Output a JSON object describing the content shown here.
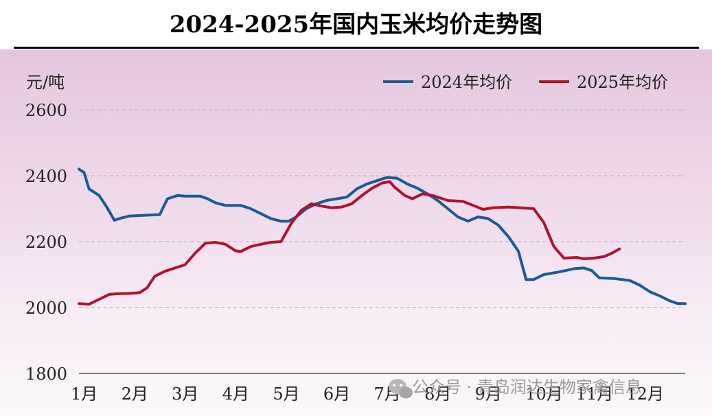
{
  "title": "2024-2025年国内玉米均价走势图",
  "watermark": "公众号 · 青岛润达生物家禽信息",
  "colors": {
    "series_2024": "#1c5a92",
    "series_2025": "#b3122a",
    "grid": "#c9b9c6"
  },
  "chart_data": {
    "type": "line",
    "title": "2024-2025年国内玉米均价走势图",
    "ylabel": "元/吨",
    "xlabel": "",
    "ylim": [
      1800,
      2600
    ],
    "yticks": [
      1800,
      2000,
      2200,
      2400,
      2600
    ],
    "x_categories": [
      "1月",
      "2月",
      "3月",
      "4月",
      "5月",
      "6月",
      "7月",
      "8月",
      "9月",
      "10月",
      "11月",
      "12月"
    ],
    "x_unit": "month (1 = 1月 start, 13 = 12月 end)",
    "grid": "horizontal dashed",
    "legend_position": "top-right",
    "series": [
      {
        "name": "2024年均价",
        "color": "#1c5a92",
        "points": [
          [
            1.0,
            2420
          ],
          [
            1.1,
            2410
          ],
          [
            1.2,
            2360
          ],
          [
            1.4,
            2340
          ],
          [
            1.55,
            2305
          ],
          [
            1.7,
            2265
          ],
          [
            1.85,
            2272
          ],
          [
            2.0,
            2278
          ],
          [
            2.3,
            2280
          ],
          [
            2.6,
            2282
          ],
          [
            2.75,
            2330
          ],
          [
            2.95,
            2340
          ],
          [
            3.1,
            2338
          ],
          [
            3.4,
            2338
          ],
          [
            3.55,
            2330
          ],
          [
            3.7,
            2318
          ],
          [
            3.9,
            2310
          ],
          [
            4.2,
            2310
          ],
          [
            4.4,
            2300
          ],
          [
            4.6,
            2285
          ],
          [
            4.8,
            2270
          ],
          [
            5.0,
            2262
          ],
          [
            5.15,
            2262
          ],
          [
            5.3,
            2275
          ],
          [
            5.5,
            2300
          ],
          [
            5.7,
            2315
          ],
          [
            5.9,
            2325
          ],
          [
            6.1,
            2330
          ],
          [
            6.3,
            2335
          ],
          [
            6.5,
            2360
          ],
          [
            6.7,
            2375
          ],
          [
            6.9,
            2385
          ],
          [
            7.1,
            2395
          ],
          [
            7.3,
            2392
          ],
          [
            7.5,
            2375
          ],
          [
            7.7,
            2362
          ],
          [
            7.9,
            2345
          ],
          [
            8.1,
            2325
          ],
          [
            8.3,
            2300
          ],
          [
            8.5,
            2275
          ],
          [
            8.7,
            2262
          ],
          [
            8.9,
            2275
          ],
          [
            9.1,
            2270
          ],
          [
            9.3,
            2250
          ],
          [
            9.5,
            2215
          ],
          [
            9.7,
            2170
          ],
          [
            9.85,
            2085
          ],
          [
            10.0,
            2085
          ],
          [
            10.2,
            2100
          ],
          [
            10.5,
            2108
          ],
          [
            10.8,
            2118
          ],
          [
            11.0,
            2120
          ],
          [
            11.15,
            2112
          ],
          [
            11.3,
            2090
          ],
          [
            11.6,
            2088
          ],
          [
            11.9,
            2082
          ],
          [
            12.1,
            2068
          ],
          [
            12.3,
            2048
          ],
          [
            12.5,
            2035
          ],
          [
            12.7,
            2020
          ],
          [
            12.85,
            2012
          ],
          [
            13.0,
            2012
          ]
        ]
      },
      {
        "name": "2025年均价",
        "color": "#b3122a",
        "points": [
          [
            1.0,
            2012
          ],
          [
            1.2,
            2010
          ],
          [
            1.4,
            2025
          ],
          [
            1.6,
            2040
          ],
          [
            1.8,
            2042
          ],
          [
            2.0,
            2043
          ],
          [
            2.2,
            2045
          ],
          [
            2.35,
            2060
          ],
          [
            2.5,
            2095
          ],
          [
            2.7,
            2110
          ],
          [
            2.9,
            2120
          ],
          [
            3.1,
            2130
          ],
          [
            3.3,
            2165
          ],
          [
            3.5,
            2195
          ],
          [
            3.7,
            2198
          ],
          [
            3.9,
            2192
          ],
          [
            4.1,
            2172
          ],
          [
            4.2,
            2170
          ],
          [
            4.4,
            2185
          ],
          [
            4.6,
            2192
          ],
          [
            4.8,
            2198
          ],
          [
            5.0,
            2200
          ],
          [
            5.2,
            2255
          ],
          [
            5.4,
            2295
          ],
          [
            5.6,
            2315
          ],
          [
            5.8,
            2308
          ],
          [
            6.0,
            2303
          ],
          [
            6.2,
            2305
          ],
          [
            6.4,
            2315
          ],
          [
            6.6,
            2340
          ],
          [
            6.8,
            2362
          ],
          [
            7.0,
            2378
          ],
          [
            7.15,
            2382
          ],
          [
            7.25,
            2365
          ],
          [
            7.45,
            2340
          ],
          [
            7.6,
            2330
          ],
          [
            7.8,
            2345
          ],
          [
            8.0,
            2340
          ],
          [
            8.3,
            2325
          ],
          [
            8.6,
            2322
          ],
          [
            8.8,
            2310
          ],
          [
            9.0,
            2298
          ],
          [
            9.2,
            2303
          ],
          [
            9.5,
            2305
          ],
          [
            9.8,
            2302
          ],
          [
            10.0,
            2300
          ],
          [
            10.2,
            2258
          ],
          [
            10.4,
            2185
          ],
          [
            10.6,
            2150
          ],
          [
            10.85,
            2152
          ],
          [
            11.0,
            2148
          ],
          [
            11.2,
            2150
          ],
          [
            11.4,
            2155
          ],
          [
            11.55,
            2165
          ],
          [
            11.7,
            2178
          ]
        ]
      }
    ]
  }
}
